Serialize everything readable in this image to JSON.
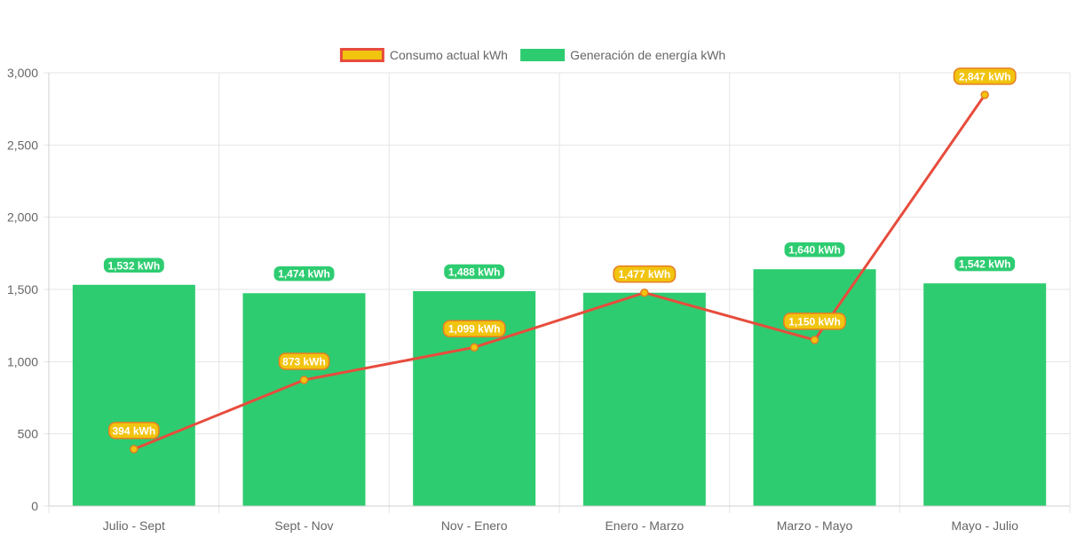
{
  "chart_data": {
    "type": "bar",
    "title": "",
    "xlabel": "",
    "ylabel": "",
    "categories": [
      "Julio - Sept",
      "Sept - Nov",
      "Nov - Enero",
      "Enero - Marzo",
      "Marzo - Mayo",
      "Mayo - Julio"
    ],
    "ylim": [
      0,
      3000
    ],
    "yticks": [
      "0",
      "500",
      "1,000",
      "1,500",
      "2,000",
      "2,500",
      "3,000"
    ],
    "ytick_values": [
      0,
      500,
      1000,
      1500,
      2000,
      2500,
      3000
    ],
    "grid": true,
    "legend_position": "top-center",
    "series": [
      {
        "name": "Consumo actual kWh",
        "kind": "line",
        "color": "#e74c3c",
        "point_color": "#f1c40f",
        "values": [
          394,
          873,
          1099,
          1477,
          1150,
          2847
        ],
        "labels": [
          "394 kWh",
          "873 kWh",
          "1,099 kWh",
          "1,477 kWh",
          "1,150 kWh",
          "2,847 kWh"
        ]
      },
      {
        "name": "Generación de energía kWh",
        "kind": "bar",
        "color": "#2ecc71",
        "values": [
          1532,
          1474,
          1488,
          1477,
          1640,
          1542
        ],
        "labels": [
          "1,532 kWh",
          "1,474 kWh",
          "1,488 kWh",
          "1,477 kWh",
          "1,640 kWh",
          "1,542 kWh"
        ]
      }
    ]
  }
}
